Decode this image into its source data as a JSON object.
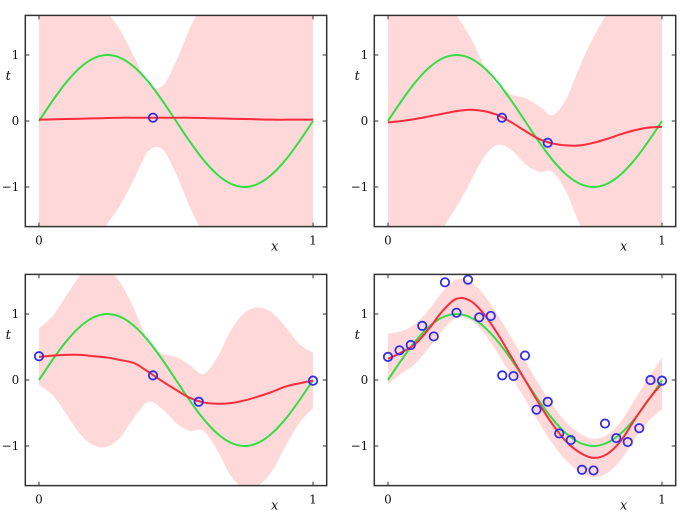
{
  "colors": {
    "band": "#ffd9d9",
    "mean": "#ff2a3c",
    "truth": "#33dd44",
    "points": "#3030e8",
    "frame": "#333333"
  },
  "x_grid": [
    0,
    0.05,
    0.1,
    0.15,
    0.2,
    0.25,
    0.3,
    0.35,
    0.4,
    0.45,
    0.5,
    0.55,
    0.6,
    0.65,
    0.7,
    0.75,
    0.8,
    0.85,
    0.9,
    0.95,
    1
  ],
  "truth": {
    "name": "sin(2πx)",
    "values": [
      0,
      0.309,
      0.588,
      0.809,
      0.951,
      1,
      0.951,
      0.809,
      0.588,
      0.309,
      0,
      -0.309,
      -0.588,
      -0.809,
      -0.951,
      -1,
      -0.951,
      -0.809,
      -0.588,
      -0.309,
      0
    ]
  },
  "chart_data": [
    {
      "type": "line",
      "title": "",
      "xlabel": "x",
      "ylabel": "t",
      "xlim": [
        -0.05,
        1.05
      ],
      "ylim": [
        -1.6,
        1.6
      ],
      "xticks": [
        0,
        1
      ],
      "xtick_labels": [
        "0",
        "1"
      ],
      "yticks": [
        -1,
        0,
        1
      ],
      "ytick_labels": [
        "−1",
        "0",
        "1"
      ],
      "mean": [
        0.02,
        0.025,
        0.03,
        0.035,
        0.04,
        0.045,
        0.05,
        0.05,
        0.05,
        0.05,
        0.05,
        0.05,
        0.045,
        0.04,
        0.035,
        0.03,
        0.025,
        0.02,
        0.02,
        0.02,
        0.02
      ],
      "std": [
        2.2,
        2.2,
        2.2,
        2.1,
        1.9,
        1.6,
        1.3,
        0.9,
        0.5,
        0.48,
        0.85,
        1.35,
        1.75,
        2.0,
        2.1,
        2.2,
        2.2,
        2.2,
        2.2,
        2.2,
        2.2
      ],
      "points": {
        "x": [
          0.416
        ],
        "y": [
          0.05
        ]
      }
    },
    {
      "type": "line",
      "title": "",
      "xlabel": "x",
      "ylabel": "t",
      "xlim": [
        -0.05,
        1.05
      ],
      "ylim": [
        -1.6,
        1.6
      ],
      "xticks": [
        0,
        1
      ],
      "xtick_labels": [
        "0",
        "1"
      ],
      "yticks": [
        -1,
        0,
        1
      ],
      "ytick_labels": [
        "−1",
        "0",
        "1"
      ],
      "mean": [
        -0.02,
        0.0,
        0.03,
        0.07,
        0.11,
        0.15,
        0.17,
        0.15,
        0.09,
        -0.02,
        -0.15,
        -0.27,
        -0.34,
        -0.37,
        -0.37,
        -0.33,
        -0.27,
        -0.2,
        -0.14,
        -0.1,
        -0.09
      ],
      "std": [
        2.2,
        2.2,
        2.2,
        2.2,
        1.75,
        1.45,
        1.1,
        0.7,
        0.45,
        0.42,
        0.5,
        0.5,
        0.43,
        0.7,
        1.2,
        1.6,
        1.9,
        2.1,
        2.2,
        2.2,
        2.2
      ],
      "points": {
        "x": [
          0.416,
          0.583
        ],
        "y": [
          0.05,
          -0.33
        ]
      }
    },
    {
      "type": "line",
      "title": "",
      "xlabel": "x",
      "ylabel": "t",
      "xlim": [
        -0.05,
        1.05
      ],
      "ylim": [
        -1.6,
        1.6
      ],
      "xticks": [
        0,
        1
      ],
      "xtick_labels": [
        "0",
        "1"
      ],
      "yticks": [
        -1,
        0,
        1
      ],
      "ytick_labels": [
        "−1",
        "0",
        "1"
      ],
      "mean": [
        0.35,
        0.37,
        0.38,
        0.38,
        0.36,
        0.34,
        0.3,
        0.25,
        0.12,
        -0.02,
        -0.15,
        -0.27,
        -0.34,
        -0.36,
        -0.35,
        -0.31,
        -0.25,
        -0.18,
        -0.1,
        -0.05,
        -0.01
      ],
      "std": [
        0.43,
        0.6,
        0.9,
        1.2,
        1.35,
        1.35,
        1.15,
        0.8,
        0.45,
        0.42,
        0.5,
        0.5,
        0.43,
        0.7,
        1.1,
        1.33,
        1.35,
        1.2,
        0.9,
        0.6,
        0.42
      ],
      "points": {
        "x": [
          0.0,
          0.416,
          0.583,
          1.0
        ],
        "y": [
          0.36,
          0.07,
          -0.33,
          -0.01
        ]
      }
    },
    {
      "type": "line",
      "title": "",
      "xlabel": "x",
      "ylabel": "t",
      "xlim": [
        -0.05,
        1.05
      ],
      "ylim": [
        -1.6,
        1.6
      ],
      "xticks": [
        0,
        1
      ],
      "xtick_labels": [
        "0",
        "1"
      ],
      "yticks": [
        -1,
        0,
        1
      ],
      "ytick_labels": [
        "−1",
        "0",
        "1"
      ],
      "mean": [
        0.32,
        0.42,
        0.55,
        0.78,
        1.05,
        1.23,
        1.2,
        1.0,
        0.7,
        0.35,
        0.0,
        -0.35,
        -0.67,
        -0.93,
        -1.1,
        -1.18,
        -1.12,
        -0.92,
        -0.6,
        -0.3,
        -0.05
      ],
      "std": [
        0.38,
        0.32,
        0.3,
        0.29,
        0.29,
        0.29,
        0.29,
        0.29,
        0.29,
        0.29,
        0.29,
        0.29,
        0.29,
        0.29,
        0.29,
        0.29,
        0.29,
        0.29,
        0.3,
        0.33,
        0.39
      ],
      "points": {
        "x": [
          0.0,
          0.042,
          0.083,
          0.125,
          0.167,
          0.208,
          0.25,
          0.292,
          0.333,
          0.375,
          0.417,
          0.458,
          0.5,
          0.542,
          0.583,
          0.625,
          0.667,
          0.708,
          0.75,
          0.792,
          0.833,
          0.875,
          0.917,
          0.958,
          1.0
        ],
        "y": [
          0.35,
          0.45,
          0.53,
          0.82,
          0.66,
          1.48,
          1.02,
          1.52,
          0.95,
          0.97,
          0.07,
          0.06,
          0.37,
          -0.45,
          -0.33,
          -0.81,
          -0.91,
          -1.36,
          -1.37,
          -0.66,
          -0.88,
          -0.94,
          -0.73,
          0.0,
          -0.01
        ]
      }
    }
  ]
}
